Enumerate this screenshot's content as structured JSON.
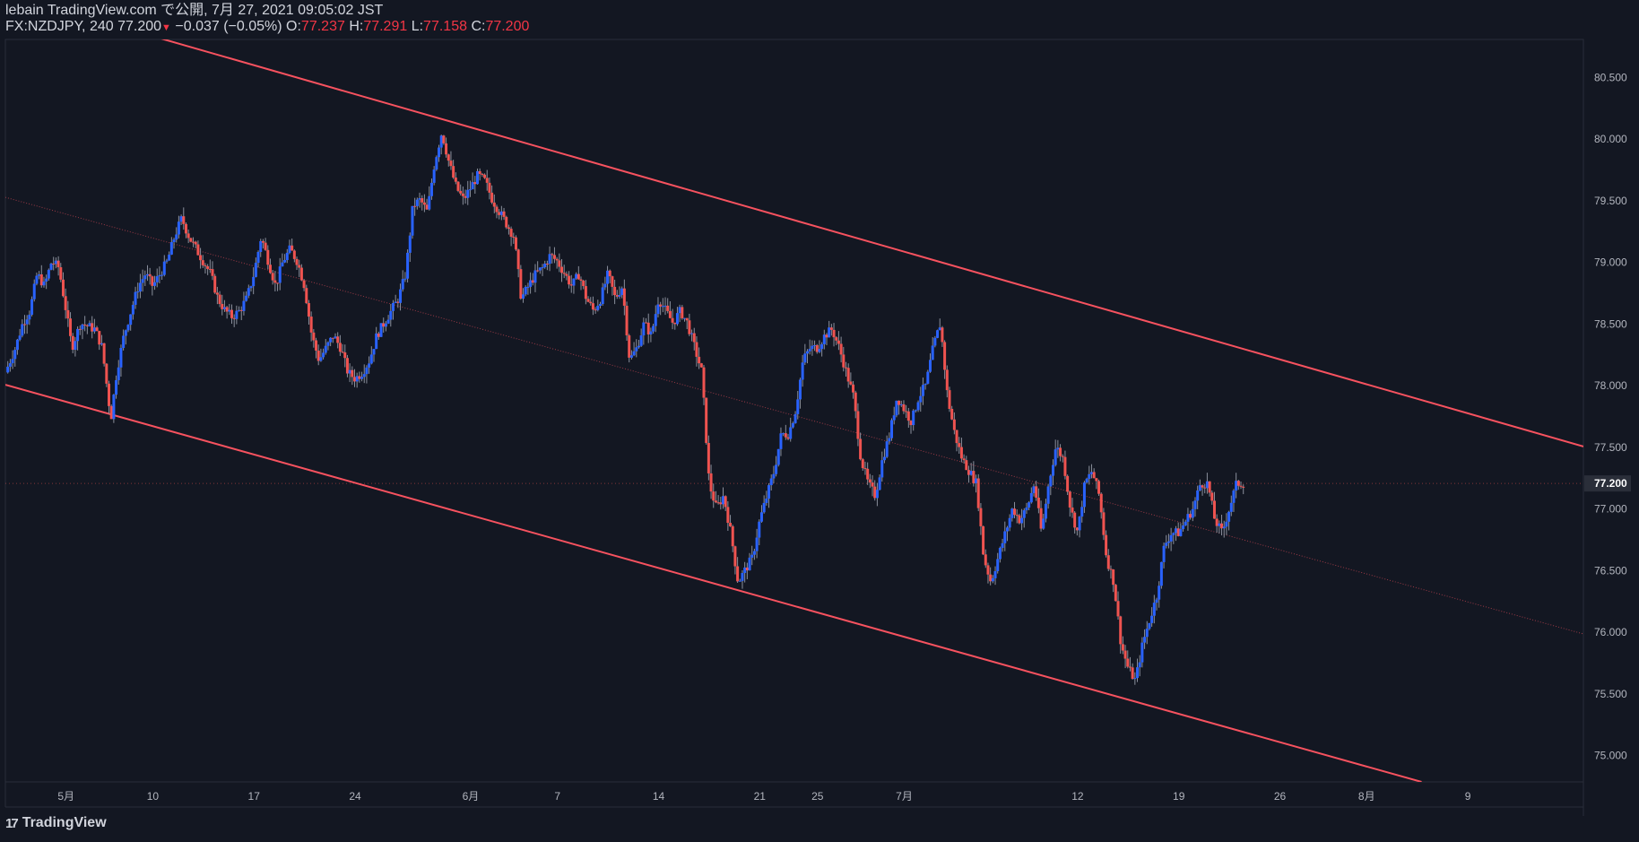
{
  "header": {
    "line1": "lebain TradingView.com で公開, 7月 27, 2021 09:05:02 JST",
    "symbol": "FX:NZDJPY, 240",
    "last": "77.200",
    "change": "−0.037 (−0.05%)",
    "o_label": "O:",
    "o_value": "77.237",
    "h_label": "H:",
    "h_value": "77.291",
    "l_label": "L:",
    "l_value": "77.158",
    "c_label": "C:",
    "c_value": "77.200"
  },
  "footer": {
    "brand": "TradingView",
    "logo_icon": "tradingview-logo-icon"
  },
  "colors": {
    "background": "#131722",
    "up": "#2962ff",
    "down": "#ef5350",
    "channel": "#f7525f",
    "axis_text": "#b2b5be",
    "grid_border": "#2a2e39"
  },
  "chart_data": {
    "type": "candlestick",
    "y_ticks": [
      "80.500",
      "80.000",
      "79.500",
      "79.000",
      "78.500",
      "78.000",
      "77.500",
      "77.000",
      "76.500",
      "76.000",
      "75.500",
      "75.000"
    ],
    "ylim": [
      74.78,
      80.8
    ],
    "price_label": "77.200",
    "last_price": 77.2,
    "x_ticks": [
      "5月",
      "10",
      "17",
      "24",
      "6月",
      "7",
      "14",
      "21",
      "25",
      "7月",
      "12",
      "19",
      "26",
      "8月",
      "9"
    ],
    "x_tick_days": [
      4,
      10,
      17,
      24,
      32,
      38,
      45,
      52,
      56,
      62,
      74,
      81,
      88,
      94,
      101
    ],
    "xlim_days": [
      -0.2,
      109
    ],
    "channel_lines": [
      {
        "name": "upper",
        "p1": [
          9,
          80.86
        ],
        "p2": [
          109,
          77.5
        ]
      },
      {
        "name": "lower",
        "p1": [
          -0.2,
          78.0
        ],
        "p2": [
          97.8,
          74.78
        ]
      },
      {
        "name": "median",
        "p1": [
          -0.2,
          79.52
        ],
        "p2": [
          109,
          75.98
        ]
      }
    ],
    "close_path": [
      [
        -0.2,
        78.1
      ],
      [
        0.5,
        78.3
      ],
      [
        1,
        78.5
      ],
      [
        1.5,
        78.6
      ],
      [
        2,
        78.9
      ],
      [
        2.5,
        78.8
      ],
      [
        3,
        79.0
      ],
      [
        3.5,
        78.95
      ],
      [
        4,
        78.6
      ],
      [
        4.4,
        78.3
      ],
      [
        5,
        78.5
      ],
      [
        6,
        78.45
      ],
      [
        6.5,
        78.3
      ],
      [
        7.1,
        77.72
      ],
      [
        7.5,
        78.1
      ],
      [
        8,
        78.4
      ],
      [
        8.5,
        78.6
      ],
      [
        9,
        78.8
      ],
      [
        9.5,
        78.9
      ],
      [
        10,
        78.8
      ],
      [
        10.5,
        78.9
      ],
      [
        11,
        79.0
      ],
      [
        11.5,
        79.2
      ],
      [
        12,
        79.35
      ],
      [
        12.5,
        79.2
      ],
      [
        13,
        79.1
      ],
      [
        13.5,
        79.0
      ],
      [
        14,
        78.9
      ],
      [
        14.5,
        78.7
      ],
      [
        15,
        78.6
      ],
      [
        15.5,
        78.55
      ],
      [
        16,
        78.6
      ],
      [
        16.5,
        78.7
      ],
      [
        17,
        78.9
      ],
      [
        17.5,
        79.2
      ],
      [
        18,
        79.0
      ],
      [
        18.5,
        78.8
      ],
      [
        19,
        79.0
      ],
      [
        19.5,
        79.1
      ],
      [
        20,
        79.0
      ],
      [
        20.5,
        78.8
      ],
      [
        21,
        78.4
      ],
      [
        21.5,
        78.2
      ],
      [
        22,
        78.3
      ],
      [
        22.5,
        78.4
      ],
      [
        23,
        78.3
      ],
      [
        23.5,
        78.1
      ],
      [
        24,
        78.05
      ],
      [
        24.5,
        78.1
      ],
      [
        25,
        78.2
      ],
      [
        25.5,
        78.4
      ],
      [
        26,
        78.5
      ],
      [
        26.5,
        78.6
      ],
      [
        27,
        78.7
      ],
      [
        27.5,
        78.9
      ],
      [
        28,
        79.45
      ],
      [
        28.5,
        79.5
      ],
      [
        29,
        79.4
      ],
      [
        29.5,
        79.8
      ],
      [
        30,
        80.05
      ],
      [
        30.5,
        79.8
      ],
      [
        31,
        79.6
      ],
      [
        31.5,
        79.5
      ],
      [
        32,
        79.6
      ],
      [
        32.5,
        79.7
      ],
      [
        33,
        79.65
      ],
      [
        33.5,
        79.5
      ],
      [
        34,
        79.4
      ],
      [
        34.5,
        79.3
      ],
      [
        35,
        79.2
      ],
      [
        35.5,
        78.7
      ],
      [
        36,
        78.8
      ],
      [
        36.5,
        78.9
      ],
      [
        37,
        78.95
      ],
      [
        37.5,
        79.05
      ],
      [
        38,
        79.0
      ],
      [
        38.5,
        78.9
      ],
      [
        39,
        78.8
      ],
      [
        39.5,
        78.9
      ],
      [
        40,
        78.7
      ],
      [
        40.5,
        78.6
      ],
      [
        41,
        78.7
      ],
      [
        41.5,
        78.9
      ],
      [
        42,
        78.7
      ],
      [
        42.5,
        78.8
      ],
      [
        43,
        78.2
      ],
      [
        43.5,
        78.3
      ],
      [
        44,
        78.5
      ],
      [
        44.5,
        78.4
      ],
      [
        45,
        78.7
      ],
      [
        45.5,
        78.6
      ],
      [
        46,
        78.5
      ],
      [
        46.5,
        78.6
      ],
      [
        47,
        78.5
      ],
      [
        47.5,
        78.3
      ],
      [
        48,
        78.1
      ],
      [
        48.5,
        77.2
      ],
      [
        49,
        77.0
      ],
      [
        49.5,
        77.1
      ],
      [
        50,
        76.8
      ],
      [
        50.5,
        76.4
      ],
      [
        51,
        76.5
      ],
      [
        51.5,
        76.6
      ],
      [
        52,
        76.9
      ],
      [
        52.5,
        77.1
      ],
      [
        53,
        77.3
      ],
      [
        53.5,
        77.6
      ],
      [
        54,
        77.6
      ],
      [
        54.5,
        77.8
      ],
      [
        55,
        78.2
      ],
      [
        55.5,
        78.3
      ],
      [
        56,
        78.3
      ],
      [
        56.5,
        78.4
      ],
      [
        57,
        78.45
      ],
      [
        57.5,
        78.3
      ],
      [
        58,
        78.1
      ],
      [
        58.5,
        77.9
      ],
      [
        59,
        77.4
      ],
      [
        59.5,
        77.2
      ],
      [
        60,
        77.1
      ],
      [
        60.5,
        77.4
      ],
      [
        61,
        77.6
      ],
      [
        61.5,
        77.9
      ],
      [
        62,
        77.8
      ],
      [
        62.5,
        77.7
      ],
      [
        63,
        77.9
      ],
      [
        63.5,
        78.0
      ],
      [
        64,
        78.3
      ],
      [
        64.5,
        78.5
      ],
      [
        65,
        77.9
      ],
      [
        65.5,
        77.6
      ],
      [
        66,
        77.4
      ],
      [
        66.5,
        77.3
      ],
      [
        67,
        77.2
      ],
      [
        67.5,
        76.6
      ],
      [
        68,
        76.4
      ],
      [
        68.5,
        76.6
      ],
      [
        69,
        76.8
      ],
      [
        69.5,
        77.0
      ],
      [
        70,
        76.9
      ],
      [
        70.5,
        77.0
      ],
      [
        71,
        77.2
      ],
      [
        71.5,
        76.8
      ],
      [
        72,
        77.2
      ],
      [
        72.5,
        77.5
      ],
      [
        73,
        77.4
      ],
      [
        73.5,
        77.0
      ],
      [
        74,
        76.8
      ],
      [
        74.5,
        77.2
      ],
      [
        75,
        77.3
      ],
      [
        75.5,
        77.1
      ],
      [
        76,
        76.6
      ],
      [
        76.5,
        76.4
      ],
      [
        77,
        75.9
      ],
      [
        77.5,
        75.7
      ],
      [
        78,
        75.6
      ],
      [
        78.5,
        75.9
      ],
      [
        79,
        76.1
      ],
      [
        79.5,
        76.3
      ],
      [
        80,
        76.7
      ],
      [
        80.5,
        76.8
      ],
      [
        81,
        76.8
      ],
      [
        81.5,
        76.9
      ],
      [
        82,
        77.0
      ],
      [
        82.5,
        77.2
      ],
      [
        83,
        77.2
      ],
      [
        83.5,
        76.9
      ],
      [
        84,
        76.8
      ],
      [
        84.5,
        77.0
      ],
      [
        85,
        77.2
      ],
      [
        85.5,
        77.2
      ]
    ]
  }
}
